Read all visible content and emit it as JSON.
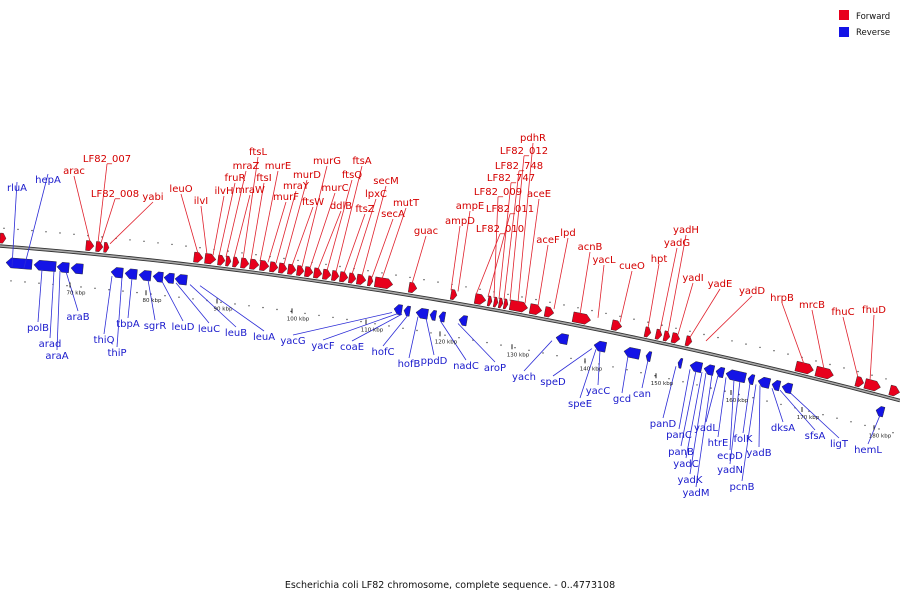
{
  "colors": {
    "forward": "#e8001c",
    "reverse": "#1414e6",
    "forward_text": "#d40000",
    "reverse_text": "#1a1acc",
    "backbone": "#7a7a7a"
  },
  "legend": [
    {
      "label": "Forward",
      "color": "#e8001c"
    },
    {
      "label": "Reverse",
      "color": "#1414e6"
    }
  ],
  "caption": "Escherichia coli LF82 chromosome, complete sequence. - 0..4773108",
  "ticks": [
    "70 kbp",
    "80 kbp",
    "90 kbp",
    "100 kbp",
    "110 kbp",
    "120 kbp",
    "130 kbp",
    "140 kbp",
    "150 kbp",
    "160 kbp",
    "170 kbp",
    "180 kbp"
  ],
  "forward_genes": [
    "arac",
    "LF82_007",
    "LF82_008",
    "yabi",
    "leuO",
    "ilvI",
    "ilvH",
    "fruR",
    "mraZ",
    "mraW",
    "ftsL",
    "ftsI",
    "murE",
    "murF",
    "mraY",
    "murD",
    "ftsW",
    "murG",
    "murC",
    "ddlB",
    "ftsQ",
    "ftsA",
    "ftsZ",
    "lpxC",
    "secM",
    "secA",
    "mutT",
    "guac",
    "ampD",
    "ampE",
    "LF82_010",
    "LF82_011",
    "LF82_009",
    "LF82_747",
    "LF82_748",
    "LF82_012",
    "pdhR",
    "aceE",
    "aceF",
    "lpd",
    "acnB",
    "yacL",
    "cueO",
    "hpt",
    "yadG",
    "yadH",
    "yadI",
    "yadE",
    "yadD",
    "hrpB",
    "mrcB",
    "fhuC",
    "fhuD"
  ],
  "reverse_genes": [
    "rluA",
    "hepA",
    "polB",
    "arad",
    "araA",
    "araB",
    "thiQ",
    "thiP",
    "tbpA",
    "sgrR",
    "leuD",
    "leuC",
    "leuB",
    "leuA",
    "yacG",
    "yacF",
    "coaE",
    "hofC",
    "hofB",
    "ppdD",
    "nadC",
    "aroP",
    "yach",
    "speD",
    "speE",
    "yacC",
    "gcd",
    "can",
    "panD",
    "panC",
    "panB",
    "yadC",
    "yadK",
    "yadM",
    "yadL",
    "htrE",
    "ecpD",
    "yadN",
    "folK",
    "pcnB",
    "yadB",
    "dksA",
    "sfsA",
    "ligT",
    "hemL"
  ]
}
